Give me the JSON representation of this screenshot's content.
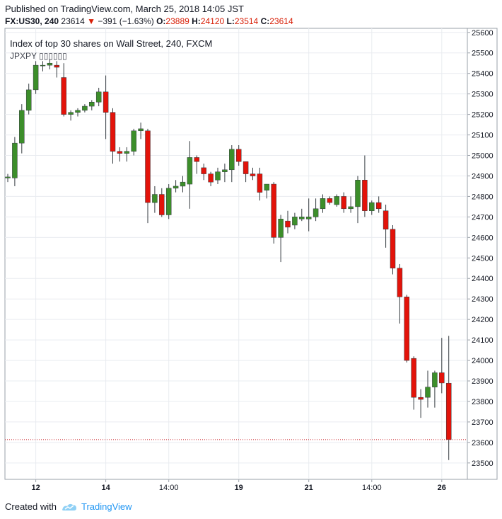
{
  "header": {
    "published": "Published on TradingView.com, March 25, 2018 14:05 JST",
    "symbol": "FX:US30, 240",
    "last": "23614",
    "change_arrow": "▼",
    "change": "−391 (−1.63%)",
    "o_label": "O:",
    "o_value": "23889",
    "h_label": "H:",
    "h_value": "24120",
    "l_label": "L:",
    "l_value": "23514",
    "c_label": "C:",
    "c_value": "23614"
  },
  "chart_data": {
    "type": "candlestick",
    "title": "Index of top 30 shares on Wall Street, 240, FXCM",
    "subtitle": "JPXPY ▯▯▯▯▯▯",
    "ylim": [
      23420,
      25620
    ],
    "y_ticks": [
      23500,
      23600,
      23700,
      23800,
      23900,
      24000,
      24100,
      24200,
      24300,
      24400,
      24500,
      24600,
      24700,
      24800,
      24900,
      25000,
      25100,
      25200,
      25300,
      25400,
      25500,
      25600
    ],
    "x_ticks": [
      "12",
      "14",
      "14:00",
      "19",
      "21",
      "14:00",
      "26"
    ],
    "last_price": 23614,
    "candles": [
      {
        "o": 24890,
        "h": 24910,
        "l": 24870,
        "c": 24895
      },
      {
        "o": 24890,
        "h": 25090,
        "l": 24850,
        "c": 25060
      },
      {
        "o": 25060,
        "h": 25250,
        "l": 25010,
        "c": 25220
      },
      {
        "o": 25220,
        "h": 25350,
        "l": 25200,
        "c": 25320
      },
      {
        "o": 25320,
        "h": 25460,
        "l": 25300,
        "c": 25440
      },
      {
        "o": 25440,
        "h": 25460,
        "l": 25410,
        "c": 25440
      },
      {
        "o": 25440,
        "h": 25470,
        "l": 25420,
        "c": 25450
      },
      {
        "o": 25440,
        "h": 25460,
        "l": 25380,
        "c": 25430
      },
      {
        "o": 25380,
        "h": 25450,
        "l": 25190,
        "c": 25200
      },
      {
        "o": 25200,
        "h": 25220,
        "l": 25170,
        "c": 25210
      },
      {
        "o": 25210,
        "h": 25230,
        "l": 25190,
        "c": 25220
      },
      {
        "o": 25220,
        "h": 25250,
        "l": 25210,
        "c": 25240
      },
      {
        "o": 25240,
        "h": 25270,
        "l": 25220,
        "c": 25260
      },
      {
        "o": 25260,
        "h": 25330,
        "l": 25240,
        "c": 25310
      },
      {
        "o": 25310,
        "h": 25390,
        "l": 25080,
        "c": 25210
      },
      {
        "o": 25210,
        "h": 25230,
        "l": 24960,
        "c": 25020
      },
      {
        "o": 25020,
        "h": 25040,
        "l": 24970,
        "c": 25010
      },
      {
        "o": 25010,
        "h": 25040,
        "l": 24970,
        "c": 25020
      },
      {
        "o": 25020,
        "h": 25130,
        "l": 25000,
        "c": 25120
      },
      {
        "o": 25120,
        "h": 25160,
        "l": 25080,
        "c": 25130
      },
      {
        "o": 25120,
        "h": 25130,
        "l": 24670,
        "c": 24770
      },
      {
        "o": 24770,
        "h": 24850,
        "l": 24720,
        "c": 24810
      },
      {
        "o": 24810,
        "h": 24840,
        "l": 24700,
        "c": 24710
      },
      {
        "o": 24710,
        "h": 24860,
        "l": 24690,
        "c": 24840
      },
      {
        "o": 24840,
        "h": 24880,
        "l": 24820,
        "c": 24850
      },
      {
        "o": 24850,
        "h": 24900,
        "l": 24820,
        "c": 24870
      },
      {
        "o": 24860,
        "h": 25070,
        "l": 24740,
        "c": 24990
      },
      {
        "o": 24990,
        "h": 25000,
        "l": 24910,
        "c": 24970
      },
      {
        "o": 24940,
        "h": 24960,
        "l": 24880,
        "c": 24910
      },
      {
        "o": 24910,
        "h": 24920,
        "l": 24850,
        "c": 24870
      },
      {
        "o": 24880,
        "h": 24940,
        "l": 24860,
        "c": 24920
      },
      {
        "o": 24920,
        "h": 24960,
        "l": 24870,
        "c": 24930
      },
      {
        "o": 24930,
        "h": 25050,
        "l": 24870,
        "c": 25030
      },
      {
        "o": 25030,
        "h": 25050,
        "l": 24950,
        "c": 24970
      },
      {
        "o": 24970,
        "h": 24960,
        "l": 24870,
        "c": 24910
      },
      {
        "o": 24910,
        "h": 24940,
        "l": 24880,
        "c": 24900
      },
      {
        "o": 24910,
        "h": 24940,
        "l": 24780,
        "c": 24820
      },
      {
        "o": 24830,
        "h": 24860,
        "l": 24790,
        "c": 24860
      },
      {
        "o": 24860,
        "h": 24870,
        "l": 24570,
        "c": 24600
      },
      {
        "o": 24600,
        "h": 24710,
        "l": 24480,
        "c": 24690
      },
      {
        "o": 24680,
        "h": 24730,
        "l": 24620,
        "c": 24650
      },
      {
        "o": 24660,
        "h": 24720,
        "l": 24640,
        "c": 24700
      },
      {
        "o": 24690,
        "h": 24740,
        "l": 24680,
        "c": 24700
      },
      {
        "o": 24690,
        "h": 24790,
        "l": 24630,
        "c": 24700
      },
      {
        "o": 24700,
        "h": 24790,
        "l": 24680,
        "c": 24740
      },
      {
        "o": 24740,
        "h": 24810,
        "l": 24720,
        "c": 24790
      },
      {
        "o": 24790,
        "h": 24800,
        "l": 24760,
        "c": 24770
      },
      {
        "o": 24760,
        "h": 24810,
        "l": 24750,
        "c": 24800
      },
      {
        "o": 24800,
        "h": 24820,
        "l": 24720,
        "c": 24740
      },
      {
        "o": 24740,
        "h": 24800,
        "l": 24720,
        "c": 24750
      },
      {
        "o": 24750,
        "h": 24900,
        "l": 24670,
        "c": 24880
      },
      {
        "o": 24880,
        "h": 25000,
        "l": 24700,
        "c": 24730
      },
      {
        "o": 24730,
        "h": 24780,
        "l": 24710,
        "c": 24770
      },
      {
        "o": 24770,
        "h": 24800,
        "l": 24720,
        "c": 24740
      },
      {
        "o": 24730,
        "h": 24760,
        "l": 24550,
        "c": 24640
      },
      {
        "o": 24640,
        "h": 24660,
        "l": 24420,
        "c": 24450
      },
      {
        "o": 24450,
        "h": 24470,
        "l": 24180,
        "c": 24310
      },
      {
        "o": 24310,
        "h": 24320,
        "l": 23990,
        "c": 24000
      },
      {
        "o": 24010,
        "h": 24020,
        "l": 23760,
        "c": 23820
      },
      {
        "o": 23820,
        "h": 23860,
        "l": 23720,
        "c": 23810
      },
      {
        "o": 23820,
        "h": 23950,
        "l": 23770,
        "c": 23870
      },
      {
        "o": 23870,
        "h": 23950,
        "l": 23770,
        "c": 23940
      },
      {
        "o": 23940,
        "h": 24110,
        "l": 23840,
        "c": 23890
      },
      {
        "o": 23889,
        "h": 24120,
        "l": 23514,
        "c": 23614
      }
    ]
  },
  "footer": {
    "created_with": "Created with",
    "brand": "TradingView"
  },
  "colors": {
    "up": "#3c8e2a",
    "down": "#e3130a",
    "grid": "#e9ecf0",
    "axis_text": "#131722",
    "price_line": "#c8161d"
  }
}
